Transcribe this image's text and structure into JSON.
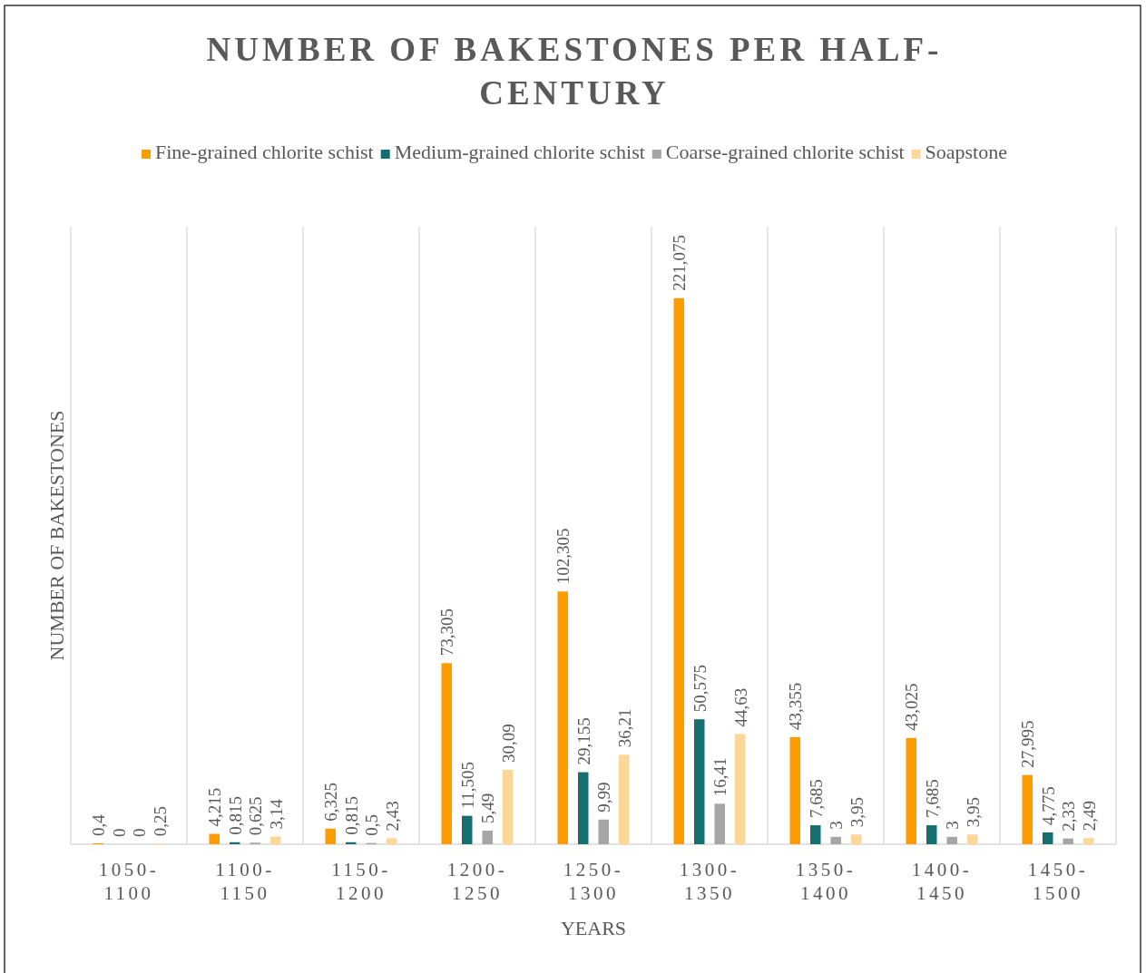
{
  "chart_data": {
    "type": "bar",
    "title": "NUMBER OF BAKESTONES PER HALF-CENTURY",
    "xlabel": "YEARS",
    "ylabel": "NUMBER OF BAKESTONES",
    "categories": [
      "1050-1100",
      "1100-1150",
      "1150-1200",
      "1200-1250",
      "1250-1300",
      "1300-1350",
      "1350-1400",
      "1400-1450",
      "1450-1500"
    ],
    "series": [
      {
        "name": "Fine-grained chlorite schist",
        "color": "#ff9c00",
        "values": [
          0.4,
          4.215,
          6.325,
          73.305,
          102.305,
          221.075,
          43.355,
          43.025,
          27.995
        ],
        "value_labels": [
          "0,4",
          "4,215",
          "6,325",
          "73,305",
          "102,305",
          "221,075",
          "43,355",
          "43,025",
          "27,995"
        ]
      },
      {
        "name": "Medium-grained chlorite schist",
        "color": "#166e6e",
        "values": [
          0,
          0.815,
          0.815,
          11.505,
          29.155,
          50.575,
          7.685,
          7.685,
          4.775
        ],
        "value_labels": [
          "0",
          "0,815",
          "0,815",
          "11,505",
          "29,155",
          "50,575",
          "7,685",
          "7,685",
          "4,775"
        ]
      },
      {
        "name": "Coarse-grained chlorite schist",
        "color": "#a6a6a6",
        "values": [
          0,
          0.625,
          0.5,
          5.49,
          9.99,
          16.41,
          3,
          3,
          2.33
        ],
        "value_labels": [
          "0",
          "0,625",
          "0,5",
          "5,49",
          "9,99",
          "16,41",
          "3",
          "3",
          "2,33"
        ]
      },
      {
        "name": "Soapstone",
        "color": "#ffd699",
        "values": [
          0.25,
          3.14,
          2.43,
          30.09,
          36.21,
          44.63,
          3.95,
          3.95,
          2.49
        ],
        "value_labels": [
          "0,25",
          "3,14",
          "2,43",
          "30,09",
          "36,21",
          "44,63",
          "3,95",
          "3,95",
          "2,49"
        ]
      }
    ],
    "ylim": [
      0,
      250
    ],
    "tick_labels": "x",
    "grid": "x",
    "legend": "top"
  }
}
